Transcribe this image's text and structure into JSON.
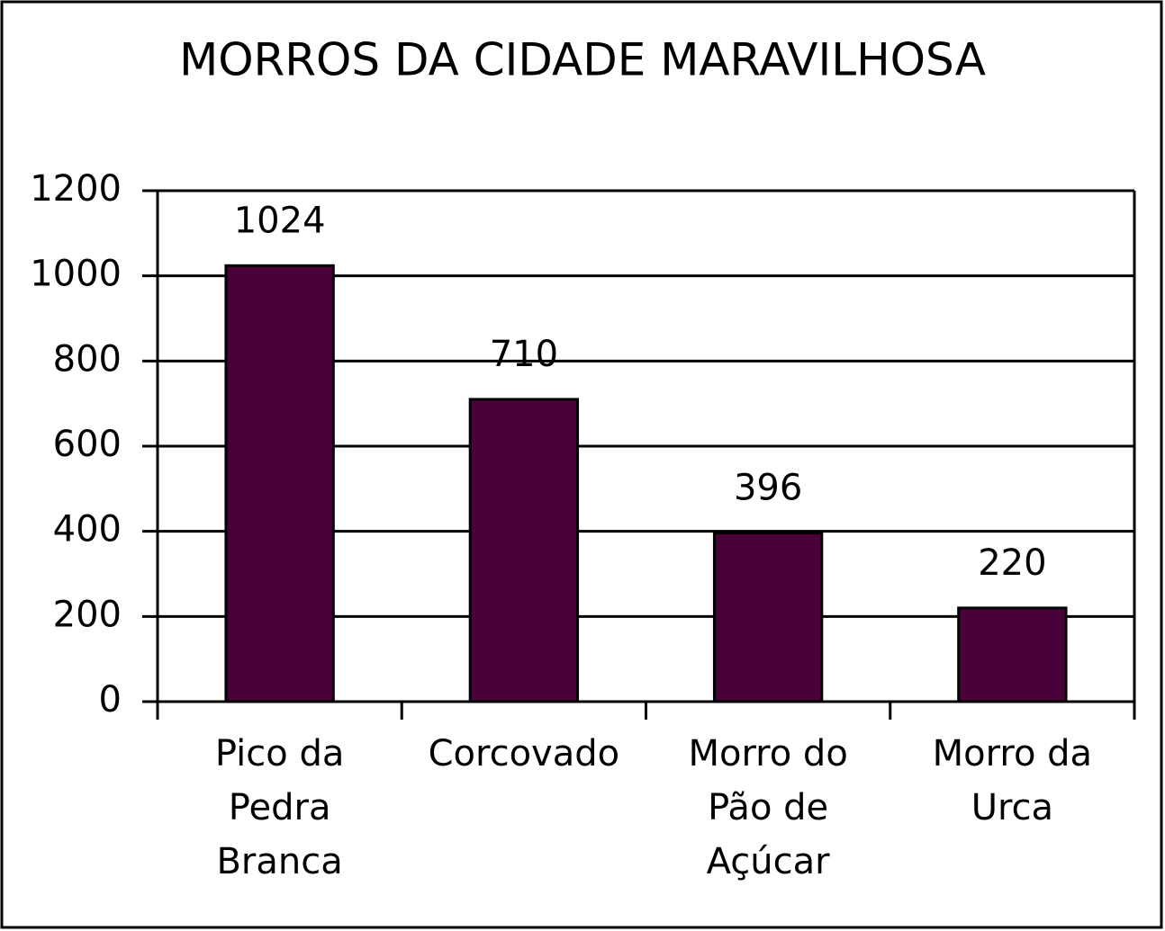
{
  "chart_data": {
    "type": "bar",
    "title": "MORROS DA CIDADE MARAVILHOSA",
    "categories": [
      "Pico da Pedra Branca",
      "Corcovado",
      "Morro do Pão de Açúcar",
      "Morro da Urca"
    ],
    "values": [
      1024,
      710,
      396,
      220
    ],
    "color": "#4a0038",
    "ylim": [
      0,
      1200
    ],
    "yticks": [
      0,
      200,
      400,
      600,
      800,
      1000,
      1200
    ],
    "grid": true,
    "data_labels": true
  }
}
